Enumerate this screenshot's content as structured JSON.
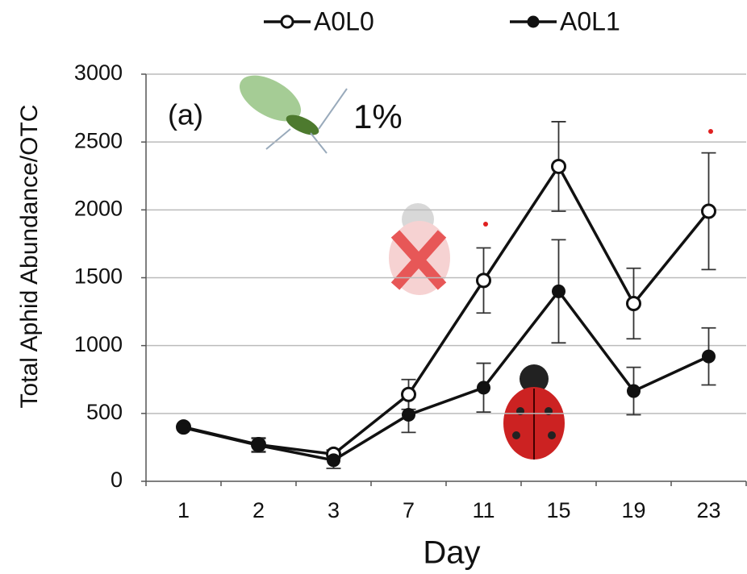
{
  "chart_data": {
    "type": "line",
    "categories": [
      "1",
      "2",
      "3",
      "7",
      "11",
      "15",
      "19",
      "23"
    ],
    "series": [
      {
        "name": "A0L0",
        "color": "#111111",
        "marker": "open",
        "values": [
          400,
          270,
          200,
          640,
          1480,
          2320,
          1310,
          1990
        ],
        "errors": [
          0,
          50,
          30,
          110,
          240,
          330,
          260,
          430
        ]
      },
      {
        "name": "A0L1",
        "color": "#111111",
        "marker": "filled",
        "values": [
          395,
          265,
          155,
          490,
          690,
          1400,
          665,
          920
        ],
        "errors": [
          0,
          50,
          60,
          130,
          180,
          380,
          175,
          210
        ]
      }
    ],
    "ylim": [
      0,
      3000
    ],
    "yticks": [
      0,
      500,
      1000,
      1500,
      2000,
      2500,
      3000
    ],
    "grid": true,
    "ylabel": "Total Aphid Abundance/OTC",
    "xlabel": "Day",
    "annotations": [
      "(a)",
      "1%"
    ]
  }
}
